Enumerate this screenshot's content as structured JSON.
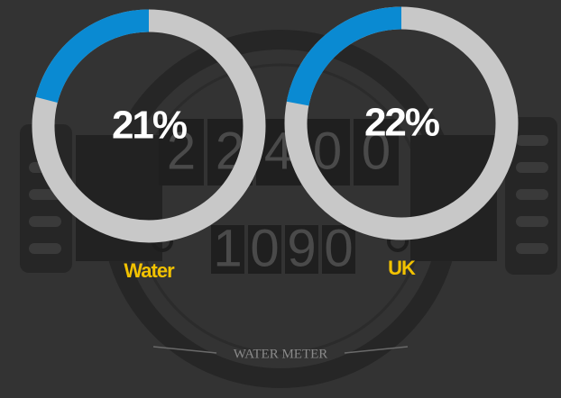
{
  "background": {
    "label": "WATER METER",
    "top_digits": [
      "2",
      "2",
      "4",
      "0",
      "0"
    ],
    "bottom_digits": [
      "1",
      "0",
      "9",
      "0"
    ]
  },
  "chart_data": [
    {
      "type": "donut",
      "title": "Water",
      "values": [
        21
      ],
      "value_labels": [
        "21%"
      ],
      "color": "#0a8ad2",
      "track_color": "#c8c8c8"
    },
    {
      "type": "donut",
      "title": "UK",
      "values": [
        22
      ],
      "value_labels": [
        "22%"
      ],
      "color": "#0a8ad2",
      "track_color": "#c8c8c8"
    }
  ]
}
